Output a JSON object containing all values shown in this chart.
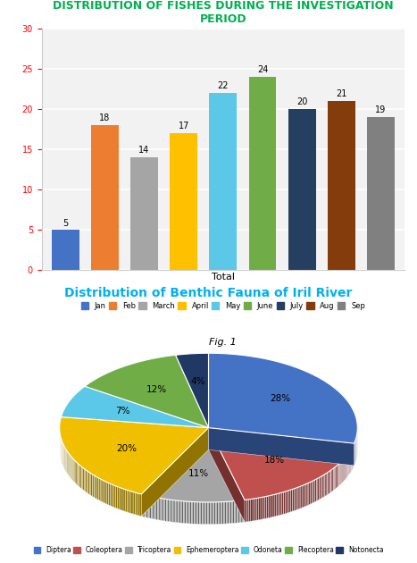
{
  "bar_title": "DISTRIBUTION OF FISHES DURING THE INVESTIGATION\nPERIOD",
  "bar_title_color": "#00b050",
  "bar_categories": [
    "Jan",
    "Feb",
    "March",
    "April",
    "May",
    "June",
    "July",
    "Aug",
    "Sep"
  ],
  "bar_values": [
    5,
    18,
    14,
    17,
    22,
    24,
    20,
    21,
    19
  ],
  "bar_colors": [
    "#4472c4",
    "#ed7d31",
    "#a5a5a5",
    "#ffc000",
    "#5bc8e8",
    "#70ad47",
    "#243f60",
    "#843c0c",
    "#808080"
  ],
  "bar_xlabel": "Total",
  "bar_ylim": [
    0,
    30
  ],
  "bar_yticks": [
    0,
    5,
    10,
    15,
    20,
    25,
    30
  ],
  "fig1_label": "Fig. 1",
  "bar_bg_color": "#f2f2f2",
  "bar_grid_color": "#ffffff",
  "pie_title": "Distribution of Benthic Fauna of Iril River",
  "pie_title_color": "#00b0f0",
  "pie_labels": [
    "Diptera",
    "Coleoptera",
    "Tricoptera",
    "Ephemeroptera",
    "Odoneta",
    "Plecoptera",
    "Notonecta"
  ],
  "pie_values": [
    40,
    25,
    16,
    28,
    10,
    17,
    5
  ],
  "pie_colors": [
    "#4472c4",
    "#c0504d",
    "#a5a5a5",
    "#f0c000",
    "#5bc8e8",
    "#70ad47",
    "#1f3864"
  ],
  "pie_bg_color": "#ffffff"
}
